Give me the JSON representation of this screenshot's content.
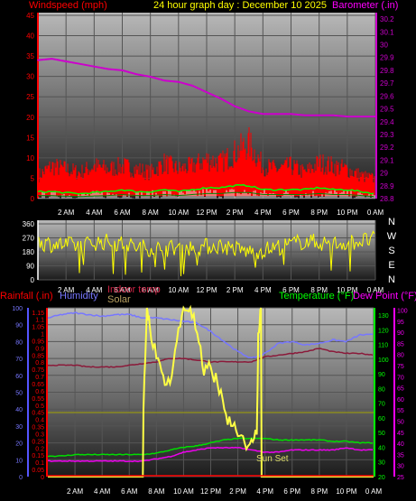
{
  "header": {
    "windspeed_label": "Windspeed (mph)",
    "title": "24 hour graph day : December 10 2025",
    "barometer_label": "Barometer (.in)"
  },
  "compass": [
    "N",
    "W",
    "S",
    "E",
    "N"
  ],
  "bottom_legend": {
    "rainfall": "Rainfall (.in)",
    "humidity": "Humidity",
    "indoor_temp": "Indoor temp",
    "solar": "Solar",
    "temperature": "Temperature (°F)",
    "dew_point": "Dew Point (°F)"
  },
  "annotation": "Sun Set",
  "colors": {
    "windspeed": "#ff0000",
    "wind_avg": "#00ff00",
    "barometer": "#cc00cc",
    "direction": "#ffff00",
    "humidity": "#7777ff",
    "indoor_temp": "#8b1a3a",
    "solar": "#ffff44",
    "temperature": "#00dd00",
    "dew_point": "#ee00ee",
    "rainfall": "#ff0000",
    "grid": "#555555"
  },
  "chart_data": [
    {
      "type": "line",
      "x_labels": [
        "2 AM",
        "4 AM",
        "6 AM",
        "8 AM",
        "10 AM",
        "12 PM",
        "2 PM",
        "4 PM",
        "6 PM",
        "8 PM",
        "10 PM",
        "0 AM"
      ],
      "x_range_hours": [
        0,
        24
      ],
      "left_axis": {
        "ticks": [
          0,
          5,
          10,
          15,
          20,
          25,
          30,
          35,
          40,
          45
        ],
        "ylim": [
          0,
          45
        ]
      },
      "right_axis": {
        "ticks": [
          "28.8",
          "28.9",
          "29",
          "29.1",
          "29.2",
          "29.3",
          "29.4",
          "29.5",
          "29.6",
          "29.7",
          "29.8",
          "29.9",
          "30",
          "30.1",
          "30.2"
        ],
        "ylim": [
          28.8,
          30.25
        ]
      },
      "series": [
        {
          "key": "barometer",
          "x": [
            0,
            1,
            2,
            3,
            4,
            5,
            6,
            7,
            8,
            9,
            10,
            11,
            12,
            13,
            14,
            15,
            16,
            17,
            18,
            19,
            20,
            21,
            22,
            23,
            24
          ],
          "values": [
            29.88,
            29.89,
            29.87,
            29.85,
            29.83,
            29.81,
            29.8,
            29.77,
            29.75,
            29.72,
            29.71,
            29.68,
            29.63,
            29.58,
            29.52,
            29.48,
            29.46,
            29.46,
            29.46,
            29.45,
            29.45,
            29.45,
            29.44,
            29.44,
            29.44
          ]
        },
        {
          "key": "windspeed_peak",
          "x": [
            0,
            1,
            2,
            3,
            4,
            5,
            6,
            7,
            8,
            9,
            10,
            11,
            12,
            13,
            14,
            15,
            16,
            17,
            18,
            19,
            20,
            21,
            22,
            23,
            24
          ],
          "values": [
            7,
            10,
            9,
            8,
            10,
            9,
            10,
            9,
            8,
            11,
            9,
            10,
            12,
            11,
            14,
            17,
            10,
            9,
            10,
            8,
            11,
            10,
            9,
            7,
            6
          ]
        },
        {
          "key": "windspeed_gust",
          "x": [
            0,
            1,
            2,
            3,
            4,
            5,
            6,
            7,
            8,
            9,
            10,
            11,
            12,
            13,
            14,
            15,
            16,
            17,
            18,
            19,
            20,
            21,
            22,
            23,
            24
          ],
          "values": [
            4,
            5,
            5,
            4,
            5,
            5,
            6,
            5,
            5,
            6,
            5,
            6,
            7,
            6,
            7,
            7,
            6,
            5,
            6,
            5,
            6,
            6,
            5,
            4,
            3
          ]
        },
        {
          "key": "wind_avg",
          "x": [
            0,
            1,
            2,
            3,
            4,
            5,
            6,
            7,
            8,
            9,
            10,
            11,
            12,
            13,
            14,
            15,
            16,
            17,
            18,
            19,
            20,
            21,
            22,
            23,
            24
          ],
          "values": [
            1.5,
            1.5,
            1.2,
            1,
            1.3,
            1.5,
            2,
            1.5,
            1.5,
            2,
            1.5,
            2,
            2.5,
            2.5,
            3,
            3,
            2,
            2,
            2,
            2,
            2.5,
            2,
            2,
            1.5,
            1
          ]
        }
      ]
    },
    {
      "type": "line",
      "x_labels": [
        "2 AM",
        "4 AM",
        "6 AM",
        "8 AM",
        "10 AM",
        "12 PM",
        "2 PM",
        "4 PM",
        "6 PM",
        "8 PM",
        "10 PM",
        "0 AM"
      ],
      "y_ticks": [
        0,
        90,
        180,
        270,
        360
      ],
      "ylim": [
        0,
        360
      ],
      "series": [
        {
          "key": "wind_direction",
          "x": [
            0,
            1,
            2,
            3,
            4,
            5,
            6,
            7,
            8,
            9,
            10,
            11,
            12,
            13,
            14,
            15,
            16,
            17,
            18,
            19,
            20,
            21,
            22,
            23,
            24
          ],
          "values": [
            240,
            230,
            225,
            220,
            240,
            245,
            230,
            210,
            205,
            200,
            210,
            205,
            215,
            220,
            200,
            180,
            190,
            210,
            230,
            250,
            240,
            230,
            240,
            250,
            260
          ]
        }
      ]
    },
    {
      "type": "line",
      "x_labels": [
        "2 AM",
        "4 AM",
        "6 AM",
        "8 AM",
        "10 AM",
        "12 PM",
        "2 PM",
        "4 PM",
        "6 PM",
        "8 PM",
        "10 PM",
        "0 AM"
      ],
      "left_axis": {
        "ticks": [
          0,
          10,
          20,
          30,
          40,
          50,
          60,
          70,
          80,
          90,
          100
        ],
        "ylim": [
          0,
          100
        ]
      },
      "rain_axis": {
        "ticks": [
          "0",
          "0.05",
          "0.1",
          "0.15",
          "0.2",
          "0.25",
          "0.3",
          "0.35",
          "0.4",
          "0.45",
          "0.5",
          "0.55",
          "0.6",
          "0.65",
          "0.7",
          "0.75",
          "0.8",
          "0.85",
          "0.9",
          "0.95",
          "1",
          "1.05",
          "1.1",
          "1.15"
        ],
        "ylim": [
          0,
          1.18
        ]
      },
      "temp_axis": {
        "ticks": [
          20,
          30,
          40,
          50,
          60,
          70,
          80,
          90,
          100,
          110,
          120,
          130
        ],
        "ylim": [
          20,
          135
        ]
      },
      "dew_axis": {
        "ticks": [
          25,
          30,
          35,
          40,
          45,
          50,
          55,
          60,
          65,
          70,
          75,
          80,
          85,
          90,
          95,
          100
        ],
        "ylim": [
          25,
          101
        ]
      },
      "series": [
        {
          "key": "humidity",
          "x": [
            0,
            1,
            2,
            3,
            4,
            5,
            6,
            7,
            8,
            9,
            10,
            11,
            12,
            13,
            14,
            15,
            16,
            17,
            18,
            19,
            20,
            21,
            22,
            23,
            24
          ],
          "values": [
            94,
            96,
            97,
            96,
            95,
            96,
            96,
            94,
            94,
            93,
            92,
            91,
            86,
            80,
            74,
            70,
            73,
            79,
            80,
            78,
            79,
            81,
            80,
            84,
            84
          ]
        },
        {
          "key": "indoor_temp",
          "x": [
            0,
            1,
            2,
            3,
            4,
            5,
            6,
            7,
            8,
            9,
            10,
            11,
            12,
            13,
            14,
            15,
            16,
            17,
            18,
            19,
            20,
            21,
            22,
            23,
            24
          ],
          "values": [
            66,
            66,
            66,
            65,
            65,
            65,
            66,
            67,
            68,
            70,
            70,
            69,
            68,
            68,
            68,
            68,
            71,
            72,
            73,
            74,
            76,
            74,
            73,
            73,
            72
          ]
        },
        {
          "key": "solar",
          "x": [
            0,
            1,
            2,
            3,
            4,
            5,
            6,
            7,
            7.05,
            7.3,
            7.5,
            8,
            8.5,
            9,
            9.5,
            10,
            10.5,
            11,
            11.5,
            12,
            12.5,
            13,
            13.5,
            14,
            14.5,
            15,
            15.4,
            15.5,
            15.7,
            15.75,
            16,
            17,
            18,
            19,
            20,
            21,
            22,
            23,
            24
          ],
          "values": [
            0,
            0,
            0,
            0,
            0,
            0,
            0,
            0,
            40,
            101,
            90,
            70,
            60,
            55,
            80,
            100,
            100,
            85,
            60,
            65,
            55,
            40,
            30,
            24,
            20,
            22,
            25,
            85,
            100,
            0,
            0,
            0,
            0,
            0,
            0,
            0,
            0,
            0,
            0
          ]
        },
        {
          "key": "temperature",
          "x": [
            0,
            1,
            2,
            3,
            4,
            5,
            6,
            7,
            8,
            9,
            10,
            11,
            12,
            13,
            14,
            15,
            16,
            17,
            18,
            19,
            20,
            21,
            22,
            23,
            24
          ],
          "values": [
            34,
            34,
            35,
            35,
            35,
            35,
            35,
            35,
            36,
            38,
            40,
            41,
            43,
            45,
            46,
            46,
            46,
            45,
            45,
            45,
            45,
            44,
            44,
            43,
            43
          ]
        },
        {
          "key": "dew_point",
          "x": [
            0,
            1,
            2,
            3,
            4,
            5,
            6,
            7,
            8,
            9,
            10,
            11,
            12,
            13,
            14,
            15,
            16,
            17,
            18,
            19,
            20,
            21,
            22,
            23,
            24
          ],
          "values": [
            32,
            32,
            32,
            32,
            32,
            32,
            32,
            32,
            33,
            34,
            36,
            37,
            38,
            38,
            38,
            37,
            36,
            36,
            37,
            37,
            37,
            37,
            38,
            37,
            37
          ]
        },
        {
          "key": "rainfall",
          "x": [
            0,
            24
          ],
          "values": [
            0,
            0
          ]
        }
      ]
    }
  ]
}
